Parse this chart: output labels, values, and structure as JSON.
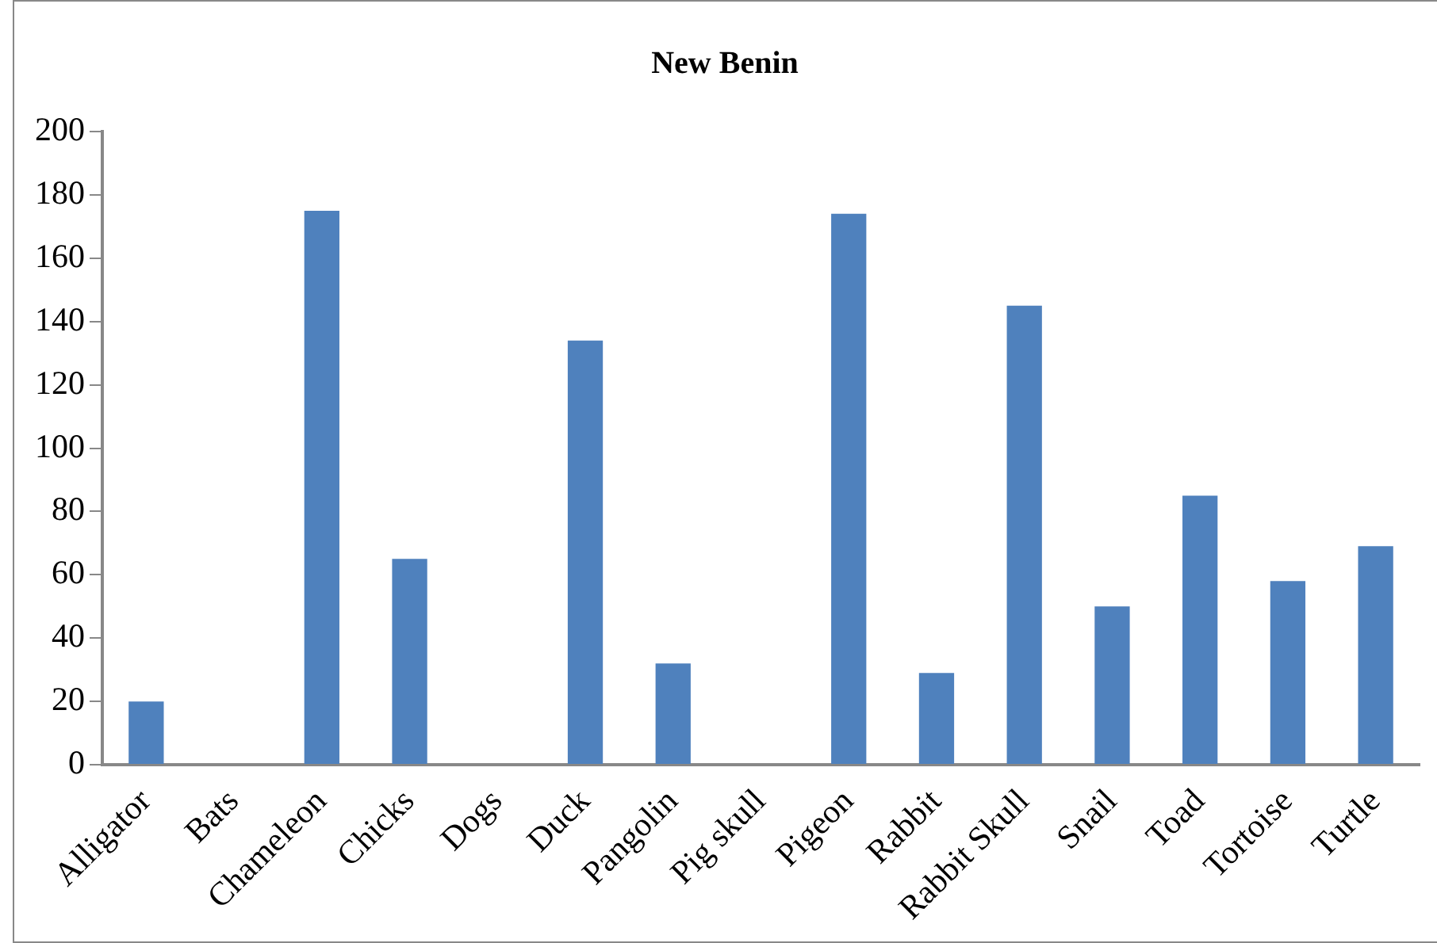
{
  "chart_data": {
    "type": "bar",
    "title": "New Benin",
    "categories": [
      "Alligator",
      "Bats",
      "Chameleon",
      "Chicks",
      "Dogs",
      "Duck",
      "Pangolin",
      "Pig skull",
      "Pigeon",
      "Rabbit",
      "Rabbit Skull",
      "Snail",
      "Toad",
      "Tortoise",
      "Turtle"
    ],
    "values": [
      20,
      0,
      175,
      65,
      0,
      134,
      32,
      0,
      174,
      29,
      145,
      50,
      85,
      58,
      69
    ],
    "color": "#4f81bd",
    "ylim": [
      0,
      200
    ],
    "yticks": [
      0,
      20,
      40,
      60,
      80,
      100,
      120,
      140,
      160,
      180,
      200
    ],
    "grid": false,
    "legend": false
  }
}
